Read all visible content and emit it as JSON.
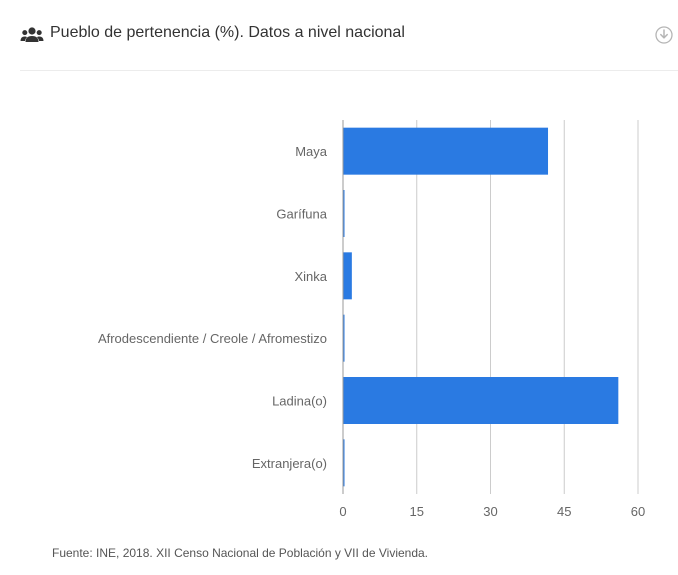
{
  "header": {
    "title": "Pueblo de pertenencia (%). Datos a nivel nacional",
    "title_icon": "users-icon",
    "download_icon": "download-circle-icon"
  },
  "footer": {
    "source": "Fuente: INE, 2018. XII Censo Nacional de Población y VII de Vivienda."
  },
  "chart_data": {
    "type": "bar",
    "orientation": "horizontal",
    "categories": [
      "Maya",
      "Garífuna",
      "Xinka",
      "Afrodescendiente / Creole / Afromestizo",
      "Ladina(o)",
      "Extranjera(o)"
    ],
    "values": [
      41.7,
      0.1,
      1.8,
      0.2,
      56.0,
      0.2
    ],
    "xlim": [
      0,
      60
    ],
    "xticks": [
      "0",
      "15",
      "30",
      "45",
      "60"
    ],
    "grid": true,
    "bar_color": "#2a7ae2",
    "grid_color": "#cccccc"
  }
}
